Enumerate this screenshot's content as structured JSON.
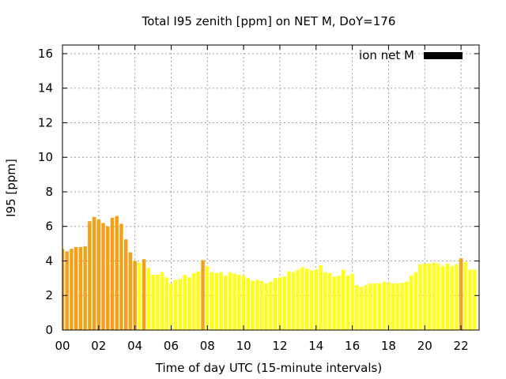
{
  "chart_data": {
    "type": "bar",
    "title": "Total I95 zenith [ppm] on NET M, DoY=176",
    "xlabel": "Time of day UTC (15-minute intervals)",
    "ylabel": "I95 [ppm]",
    "xlim": [
      0,
      23
    ],
    "ylim": [
      0,
      16.5
    ],
    "x_ticks": [
      "00",
      "02",
      "04",
      "06",
      "08",
      "10",
      "12",
      "14",
      "16",
      "18",
      "20",
      "22"
    ],
    "y_ticks": [
      "0",
      "2",
      "4",
      "6",
      "8",
      "10",
      "12",
      "14",
      "16"
    ],
    "grid": true,
    "legend": {
      "label": "ion net M",
      "position": "top-right",
      "color": "#000000"
    },
    "colors": {
      "orange": "#f5a118",
      "yellow": "#ffff1a"
    },
    "series": [
      {
        "values": [
          4.7,
          4.55,
          4.7,
          4.8,
          4.8,
          4.85,
          6.3,
          6.55,
          6.4,
          6.2,
          6.0,
          6.5,
          6.6,
          6.15,
          5.25,
          4.5,
          4.0,
          3.9,
          4.1,
          3.6,
          3.2,
          3.2,
          3.35,
          3.05,
          2.7,
          2.9,
          2.95,
          3.2,
          3.05,
          3.3,
          3.4,
          4.05,
          3.7,
          3.35,
          3.3,
          3.35,
          3.15,
          3.35,
          3.25,
          3.2,
          3.15,
          3.0,
          2.85,
          2.9,
          2.85,
          2.7,
          2.8,
          3.0,
          3.05,
          3.1,
          3.4,
          3.35,
          3.5,
          3.65,
          3.55,
          3.45,
          3.5,
          3.75,
          3.35,
          3.3,
          3.1,
          3.15,
          3.5,
          3.15,
          3.25,
          2.6,
          2.5,
          2.6,
          2.7,
          2.7,
          2.7,
          2.8,
          2.75,
          2.7,
          2.7,
          2.75,
          2.8,
          3.15,
          3.35,
          3.8,
          3.85,
          3.85,
          3.9,
          3.85,
          3.7,
          3.85,
          3.7,
          3.8,
          4.15,
          3.95,
          3.5,
          3.5
        ],
        "colors": [
          "orange",
          "orange",
          "orange",
          "orange",
          "orange",
          "orange",
          "orange",
          "orange",
          "orange",
          "orange",
          "orange",
          "orange",
          "orange",
          "orange",
          "orange",
          "orange",
          "orange",
          "yellow",
          "orange",
          "yellow",
          "yellow",
          "yellow",
          "yellow",
          "yellow",
          "yellow",
          "yellow",
          "yellow",
          "yellow",
          "yellow",
          "yellow",
          "yellow",
          "orange",
          "yellow",
          "yellow",
          "yellow",
          "yellow",
          "yellow",
          "yellow",
          "yellow",
          "yellow",
          "yellow",
          "yellow",
          "yellow",
          "yellow",
          "yellow",
          "yellow",
          "yellow",
          "yellow",
          "yellow",
          "yellow",
          "yellow",
          "yellow",
          "yellow",
          "yellow",
          "yellow",
          "yellow",
          "yellow",
          "yellow",
          "yellow",
          "yellow",
          "yellow",
          "yellow",
          "yellow",
          "yellow",
          "yellow",
          "yellow",
          "yellow",
          "yellow",
          "yellow",
          "yellow",
          "yellow",
          "yellow",
          "yellow",
          "yellow",
          "yellow",
          "yellow",
          "yellow",
          "yellow",
          "yellow",
          "yellow",
          "yellow",
          "yellow",
          "yellow",
          "yellow",
          "yellow",
          "yellow",
          "yellow",
          "yellow",
          "orange",
          "yellow",
          "yellow",
          "yellow"
        ]
      }
    ]
  }
}
